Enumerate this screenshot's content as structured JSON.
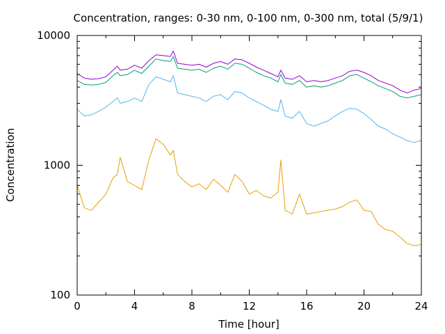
{
  "chart_data": {
    "type": "line",
    "title": "Concentration, ranges: 0-30 nm, 0-100 nm, 0-300 nm, total (5/9/1)",
    "xlabel": "Time [hour]",
    "ylabel": "Concentration",
    "xlim": [
      0,
      24
    ],
    "ylim": [
      100,
      10000
    ],
    "yscale": "log",
    "grid": false,
    "legend": "none",
    "x_ticks": [
      "0",
      "4",
      "8",
      "12",
      "16",
      "20",
      "24"
    ],
    "y_ticks": [
      "100",
      "1000",
      "10000"
    ],
    "x": [
      0,
      0.5,
      1,
      1.5,
      2,
      2.5,
      2.8,
      3,
      3.5,
      4,
      4.5,
      5,
      5.5,
      6,
      6.5,
      6.7,
      7,
      7.5,
      8,
      8.5,
      9,
      9.5,
      10,
      10.5,
      11,
      11.5,
      12,
      12.5,
      13,
      13.5,
      14,
      14.2,
      14.5,
      15,
      15.5,
      16,
      16.5,
      17,
      17.5,
      18,
      18.5,
      19,
      19.5,
      20,
      20.5,
      21,
      21.5,
      22,
      22.5,
      23,
      23.5,
      24
    ],
    "series": [
      {
        "color": "#9400d3",
        "values": [
          5100,
          4700,
          4600,
          4650,
          4800,
          5400,
          5800,
          5400,
          5500,
          5900,
          5600,
          6400,
          7100,
          7000,
          6900,
          7600,
          6100,
          6000,
          5900,
          6000,
          5700,
          6100,
          6300,
          6000,
          6600,
          6500,
          6100,
          5700,
          5400,
          5100,
          4800,
          5400,
          4700,
          4600,
          4900,
          4400,
          4500,
          4400,
          4500,
          4700,
          4900,
          5300,
          5400,
          5200,
          4900,
          4500,
          4300,
          4100,
          3800,
          3600,
          3800,
          3900
        ]
      },
      {
        "color": "#009e73",
        "values": [
          4500,
          4200,
          4150,
          4200,
          4350,
          4900,
          5200,
          4900,
          5000,
          5400,
          5100,
          5800,
          6600,
          6400,
          6300,
          6900,
          5600,
          5500,
          5400,
          5500,
          5200,
          5600,
          5800,
          5500,
          6100,
          6000,
          5600,
          5200,
          4900,
          4700,
          4400,
          5000,
          4300,
          4200,
          4500,
          4000,
          4100,
          4000,
          4100,
          4300,
          4500,
          4900,
          5000,
          4700,
          4400,
          4100,
          3900,
          3700,
          3400,
          3300,
          3400,
          3500
        ]
      },
      {
        "color": "#56b4e9",
        "values": [
          2700,
          2400,
          2450,
          2600,
          2800,
          3100,
          3300,
          3000,
          3100,
          3300,
          3100,
          4200,
          4800,
          4600,
          4400,
          4900,
          3600,
          3500,
          3400,
          3300,
          3100,
          3400,
          3500,
          3200,
          3700,
          3600,
          3300,
          3100,
          2900,
          2700,
          2600,
          3200,
          2400,
          2300,
          2600,
          2100,
          2000,
          2100,
          2200,
          2400,
          2600,
          2750,
          2700,
          2500,
          2250,
          2000,
          1900,
          1750,
          1650,
          1550,
          1500,
          1550
        ]
      },
      {
        "color": "#e69f00",
        "values": [
          700,
          470,
          450,
          520,
          600,
          800,
          850,
          1150,
          750,
          700,
          650,
          1100,
          1600,
          1450,
          1200,
          1300,
          850,
          750,
          680,
          720,
          650,
          780,
          700,
          620,
          850,
          750,
          600,
          640,
          580,
          560,
          620,
          1100,
          450,
          420,
          600,
          420,
          430,
          440,
          450,
          460,
          480,
          520,
          540,
          450,
          440,
          350,
          320,
          310,
          280,
          250,
          240,
          245
        ]
      }
    ]
  }
}
